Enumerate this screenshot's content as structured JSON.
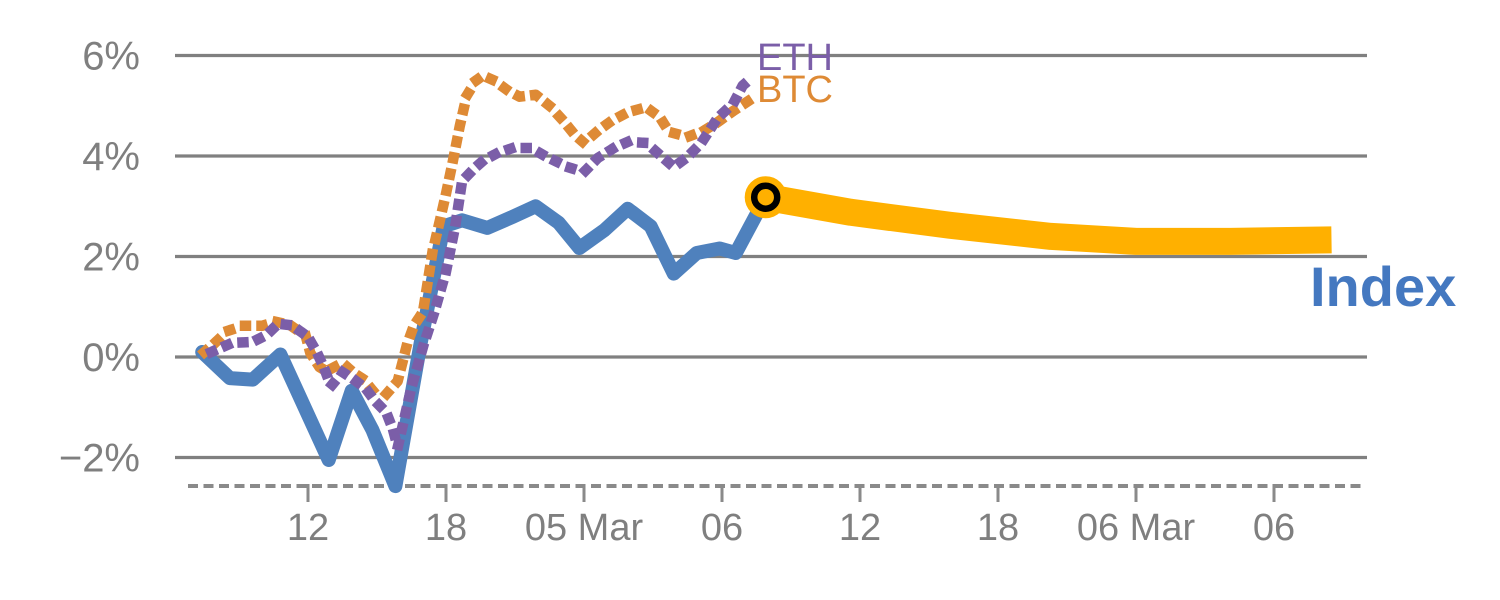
{
  "chart_data": {
    "type": "line",
    "title": "",
    "xlabel": "",
    "ylabel": "",
    "grid": true,
    "legend_position": "inline-end-of-line-labels",
    "x_axis": {
      "unit": "hours (6-hour ticks across 4–6 Mar)",
      "range_hours": [
        6.2,
        58.1
      ],
      "tick_hours": [
        12,
        18,
        24,
        30,
        36,
        42,
        48,
        54
      ],
      "tick_labels": [
        "12",
        "18",
        "05 Mar",
        "06",
        "12",
        "18",
        "06 Mar",
        "06"
      ]
    },
    "y_axis": {
      "unit": "percent",
      "range": [
        -2.6,
        6.2
      ],
      "tick_values": [
        6,
        4,
        2,
        0,
        -2
      ],
      "tick_labels": [
        "6%",
        "4%",
        "2%",
        "0%",
        "−2%"
      ]
    },
    "series_labels": {
      "eth": "ETH",
      "btc": "BTC",
      "index": "Index"
    },
    "colors": {
      "index_line": "#4F81BD",
      "index_label": "#4478C0",
      "btc": "#DE8A35",
      "eth": "#7B5EA8",
      "projection": "#FFB000",
      "marker_ring": "#000000",
      "grid": "#808080",
      "axis": "#8A8A8A",
      "tick_text": "#7F7F7F"
    },
    "marker": {
      "t": 31.9,
      "pct": 3.18
    },
    "series": [
      {
        "id": "index",
        "label": "Index",
        "color": "#4F81BD",
        "style": "solid",
        "width": 14,
        "points": [
          [
            7.4,
            0.1
          ],
          [
            8.6,
            -0.42
          ],
          [
            9.6,
            -0.45
          ],
          [
            10.8,
            0.05
          ],
          [
            12.9,
            -2.05
          ],
          [
            13.9,
            -0.67
          ],
          [
            14.8,
            -1.45
          ],
          [
            15.8,
            -2.57
          ],
          [
            16.9,
            0.28
          ],
          [
            17.9,
            2.6
          ],
          [
            18.7,
            2.72
          ],
          [
            19.8,
            2.57
          ],
          [
            20.9,
            2.79
          ],
          [
            21.9,
            3.0
          ],
          [
            22.9,
            2.67
          ],
          [
            23.8,
            2.17
          ],
          [
            24.9,
            2.53
          ],
          [
            25.9,
            2.95
          ],
          [
            26.9,
            2.6
          ],
          [
            27.9,
            1.66
          ],
          [
            28.9,
            2.07
          ],
          [
            29.9,
            2.16
          ],
          [
            30.6,
            2.07
          ],
          [
            31.9,
            3.18
          ]
        ]
      },
      {
        "id": "btc",
        "label": "BTC",
        "color": "#DE8A35",
        "style": "dotted",
        "width": 10.5,
        "points": [
          [
            7.5,
            0.1
          ],
          [
            8.0,
            0.3
          ],
          [
            8.5,
            0.52
          ],
          [
            9.2,
            0.62
          ],
          [
            10.0,
            0.62
          ],
          [
            10.6,
            0.7
          ],
          [
            11.2,
            0.64
          ],
          [
            11.9,
            0.42
          ],
          [
            12.1,
            0.08
          ],
          [
            12.5,
            -0.2
          ],
          [
            12.8,
            -0.28
          ],
          [
            13.5,
            -0.12
          ],
          [
            14.0,
            -0.32
          ],
          [
            14.4,
            -0.44
          ],
          [
            14.8,
            -0.66
          ],
          [
            15.4,
            -0.74
          ],
          [
            15.9,
            -0.48
          ],
          [
            16.3,
            0.24
          ],
          [
            16.6,
            0.62
          ],
          [
            17.0,
            0.9
          ],
          [
            17.4,
            2.06
          ],
          [
            17.7,
            2.65
          ],
          [
            18.0,
            3.25
          ],
          [
            18.3,
            3.9
          ],
          [
            18.6,
            4.6
          ],
          [
            18.9,
            5.2
          ],
          [
            19.3,
            5.5
          ],
          [
            19.6,
            5.6
          ],
          [
            20.1,
            5.5
          ],
          [
            20.7,
            5.3
          ],
          [
            21.2,
            5.18
          ],
          [
            21.9,
            5.22
          ],
          [
            22.5,
            5.0
          ],
          [
            23.1,
            4.7
          ],
          [
            23.6,
            4.42
          ],
          [
            24.0,
            4.26
          ],
          [
            24.6,
            4.5
          ],
          [
            25.2,
            4.7
          ],
          [
            25.9,
            4.87
          ],
          [
            26.7,
            4.97
          ],
          [
            27.3,
            4.77
          ],
          [
            27.7,
            4.48
          ],
          [
            28.5,
            4.38
          ],
          [
            29.2,
            4.5
          ],
          [
            29.8,
            4.67
          ],
          [
            30.5,
            4.9
          ],
          [
            31.2,
            5.11
          ]
        ]
      },
      {
        "id": "eth",
        "label": "ETH",
        "color": "#7B5EA8",
        "style": "dotted",
        "width": 10.5,
        "points": [
          [
            7.8,
            0.1
          ],
          [
            8.7,
            0.28
          ],
          [
            9.6,
            0.3
          ],
          [
            10.2,
            0.44
          ],
          [
            10.7,
            0.66
          ],
          [
            11.3,
            0.63
          ],
          [
            12.0,
            0.4
          ],
          [
            12.4,
            0.08
          ],
          [
            12.7,
            -0.22
          ],
          [
            13.0,
            -0.58
          ],
          [
            13.5,
            -0.3
          ],
          [
            14.0,
            -0.45
          ],
          [
            14.5,
            -0.62
          ],
          [
            14.9,
            -0.87
          ],
          [
            15.4,
            -1.1
          ],
          [
            15.7,
            -1.45
          ],
          [
            15.9,
            -1.8
          ],
          [
            16.5,
            -0.6
          ],
          [
            17.0,
            0.2
          ],
          [
            17.5,
            0.9
          ],
          [
            18.0,
            1.7
          ],
          [
            18.4,
            2.6
          ],
          [
            18.7,
            3.5
          ],
          [
            19.2,
            3.74
          ],
          [
            19.6,
            3.9
          ],
          [
            20.2,
            4.05
          ],
          [
            20.9,
            4.16
          ],
          [
            21.7,
            4.16
          ],
          [
            22.3,
            4.0
          ],
          [
            23.3,
            3.78
          ],
          [
            24.0,
            3.68
          ],
          [
            24.6,
            3.96
          ],
          [
            25.3,
            4.16
          ],
          [
            25.9,
            4.28
          ],
          [
            26.7,
            4.26
          ],
          [
            27.3,
            4.02
          ],
          [
            27.9,
            3.78
          ],
          [
            28.5,
            3.98
          ],
          [
            29.1,
            4.26
          ],
          [
            29.8,
            4.75
          ],
          [
            30.5,
            5.05
          ],
          [
            30.9,
            5.4
          ],
          [
            31.4,
            5.6
          ]
        ]
      },
      {
        "id": "index-projection",
        "label": "",
        "color": "#FFB000",
        "style": "solid",
        "width": 27,
        "points": [
          [
            31.9,
            3.18
          ],
          [
            35.6,
            2.88
          ],
          [
            39.9,
            2.62
          ],
          [
            44.3,
            2.4
          ],
          [
            48.0,
            2.3
          ],
          [
            52.1,
            2.3
          ],
          [
            56.5,
            2.33
          ]
        ]
      }
    ]
  }
}
